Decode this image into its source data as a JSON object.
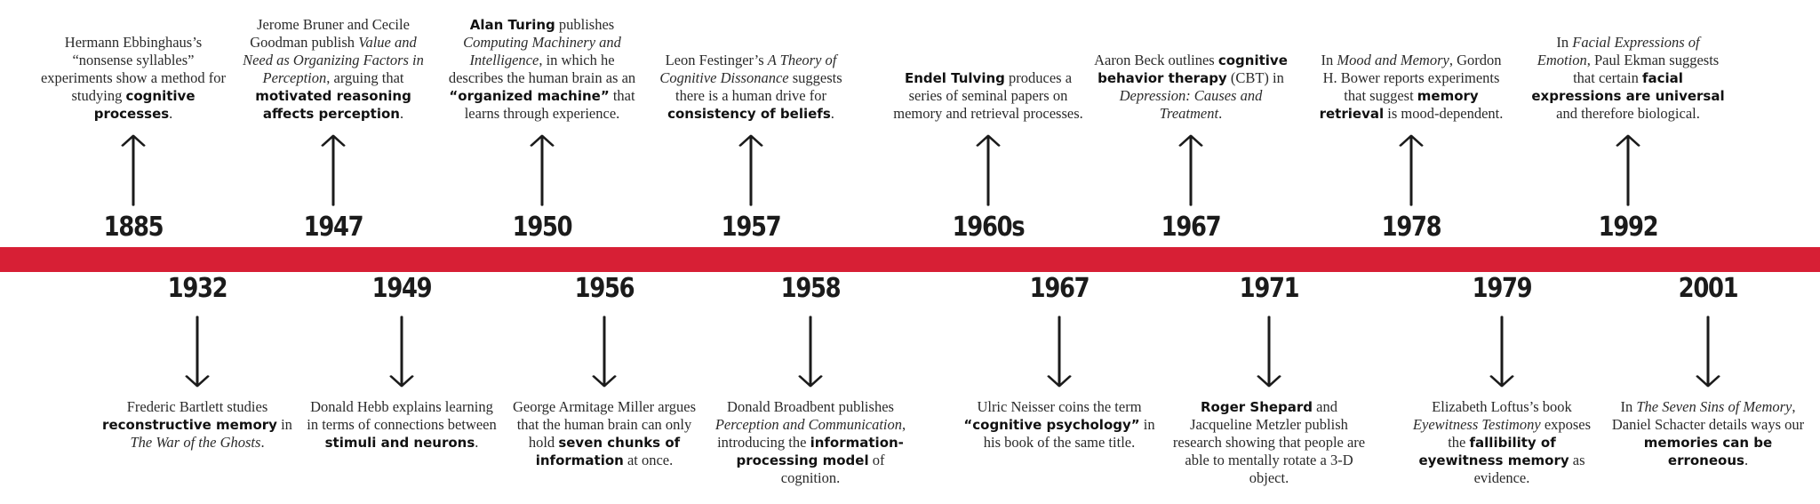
{
  "timeline": {
    "top_events": [
      {
        "year": "1885",
        "segments": [
          {
            "t": "Hermann Ebbinghaus’s “nonsense syllables” experiments show a method for studying "
          },
          {
            "t": "cognitive processes",
            "b": true
          },
          {
            "t": "."
          }
        ]
      },
      {
        "year": "1947",
        "segments": [
          {
            "t": "Jerome Bruner and Cecile Goodman publish "
          },
          {
            "t": "Value and Need as Organizing Factors in Perception",
            "i": true
          },
          {
            "t": ", arguing that "
          },
          {
            "t": "motivated reasoning affects perception",
            "b": true
          },
          {
            "t": "."
          }
        ]
      },
      {
        "year": "1950",
        "segments": [
          {
            "t": "Alan Turing",
            "b": true
          },
          {
            "t": " publishes "
          },
          {
            "t": "Computing Machinery and Intelligence",
            "i": true
          },
          {
            "t": ", in which he describes the human brain as an "
          },
          {
            "t": "“organized machine”",
            "b": true
          },
          {
            "t": " that learns through experience."
          }
        ]
      },
      {
        "year": "1957",
        "segments": [
          {
            "t": "Leon Festinger’s "
          },
          {
            "t": "A Theory of Cognitive Dissonance",
            "i": true
          },
          {
            "t": " suggests there is a human drive for "
          },
          {
            "t": "consistency of beliefs",
            "b": true
          },
          {
            "t": "."
          }
        ]
      },
      {
        "year": "1960s",
        "segments": [
          {
            "t": "Endel Tulving",
            "b": true
          },
          {
            "t": " produces a series of seminal papers on memory and retrieval processes."
          }
        ]
      },
      {
        "year": "1967",
        "segments": [
          {
            "t": "Aaron Beck outlines "
          },
          {
            "t": "cognitive behavior therapy",
            "b": true
          },
          {
            "t": " (CBT) in "
          },
          {
            "t": "Depression: Causes and Treatment",
            "i": true
          },
          {
            "t": "."
          }
        ]
      },
      {
        "year": "1978",
        "segments": [
          {
            "t": "In "
          },
          {
            "t": "Mood and Memory",
            "i": true
          },
          {
            "t": ", Gordon H. Bower reports experiments that suggest "
          },
          {
            "t": "memory retrieval",
            "b": true
          },
          {
            "t": " is mood-dependent."
          }
        ]
      },
      {
        "year": "1992",
        "segments": [
          {
            "t": "In "
          },
          {
            "t": "Facial Expressions of Emotion",
            "i": true
          },
          {
            "t": ", Paul Ekman suggests that certain "
          },
          {
            "t": "facial expressions are universal",
            "b": true
          },
          {
            "t": " and therefore biological."
          }
        ]
      }
    ],
    "bottom_events": [
      {
        "year": "1932",
        "segments": [
          {
            "t": "Frederic Bartlett studies "
          },
          {
            "t": "reconstructive memory",
            "b": true
          },
          {
            "t": " in "
          },
          {
            "t": "The War of the Ghosts",
            "i": true
          },
          {
            "t": "."
          }
        ]
      },
      {
        "year": "1949",
        "segments": [
          {
            "t": "Donald Hebb explains learning in terms of connections between "
          },
          {
            "t": "stimuli and neurons",
            "b": true
          },
          {
            "t": "."
          }
        ]
      },
      {
        "year": "1956",
        "segments": [
          {
            "t": "George Armitage Miller argues that the human brain can only hold "
          },
          {
            "t": "seven chunks of information",
            "b": true
          },
          {
            "t": " at once."
          }
        ]
      },
      {
        "year": "1958",
        "segments": [
          {
            "t": "Donald Broadbent publishes "
          },
          {
            "t": "Perception and Communication",
            "i": true
          },
          {
            "t": ", introducing the "
          },
          {
            "t": "information-processing model",
            "b": true
          },
          {
            "t": " of cognition."
          }
        ]
      },
      {
        "year": "1967",
        "segments": [
          {
            "t": "Ulric Neisser coins the term "
          },
          {
            "t": "“cognitive psychology”",
            "b": true
          },
          {
            "t": " in his book of the same title."
          }
        ]
      },
      {
        "year": "1971",
        "segments": [
          {
            "t": "Roger Shepard",
            "b": true
          },
          {
            "t": " and Jacqueline Metzler publish research showing that people are able to mentally rotate a 3-D object."
          }
        ]
      },
      {
        "year": "1979",
        "segments": [
          {
            "t": "Elizabeth Loftus’s book "
          },
          {
            "t": "Eyewitness Testimony",
            "i": true
          },
          {
            "t": " exposes the "
          },
          {
            "t": "fallibility of eyewitness memory",
            "b": true
          },
          {
            "t": " as evidence."
          }
        ]
      },
      {
        "year": "2001",
        "segments": [
          {
            "t": "In "
          },
          {
            "t": "The Seven Sins of Memory",
            "i": true
          },
          {
            "t": ", Daniel Schacter details ways our "
          },
          {
            "t": "memories can be erroneous",
            "b": true
          },
          {
            "t": "."
          }
        ]
      }
    ],
    "colors": {
      "band": "#d71f35",
      "ink": "#1b1b1b"
    }
  }
}
